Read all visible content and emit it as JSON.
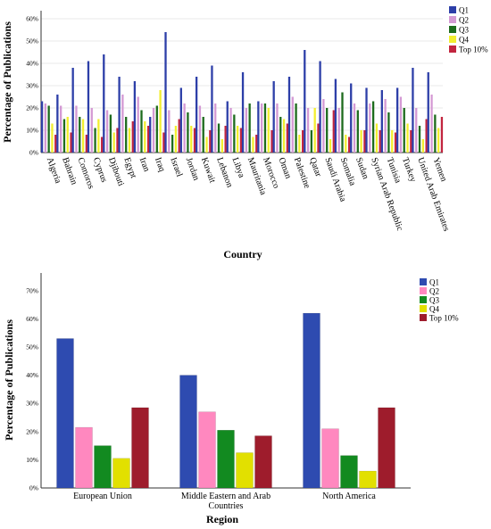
{
  "chart_data": [
    {
      "type": "bar",
      "xlabel": "Country",
      "ylabel": "Percentage of Publications",
      "ylim": [
        0,
        62
      ],
      "yticks": [
        "0%",
        "10%",
        "20%",
        "30%",
        "40%",
        "50%",
        "60%"
      ],
      "legend_position": "top-right",
      "categories": [
        "Algeria",
        "Bahrain",
        "Comoros",
        "Cyprus",
        "Djibouti",
        "Egypt",
        "Iran",
        "Iraq",
        "Israel",
        "Jordan",
        "Kuwait",
        "Lebanon",
        "Libya",
        "Mauritania",
        "Morocco",
        "Oman",
        "Palestine",
        "Qatar",
        "Saudi Arabia",
        "Somalia",
        "Sudan",
        "Syrian Arab Republic",
        "Tunisia",
        "Turkey",
        "United Arab Emirates",
        "Yemen"
      ],
      "series": [
        {
          "name": "Q1",
          "color": "#2d3fa8",
          "values": [
            23,
            26,
            38,
            41,
            44,
            34,
            32,
            16,
            54,
            29,
            34,
            39,
            23,
            36,
            23,
            32,
            34,
            46,
            41,
            33,
            31,
            29,
            28,
            29,
            38,
            36
          ]
        },
        {
          "name": "Q2",
          "color": "#d49ad4",
          "values": [
            22,
            21,
            21,
            20,
            19,
            26,
            25,
            20,
            19,
            22,
            21,
            22,
            20,
            20,
            22,
            22,
            25,
            20,
            24,
            20,
            22,
            22,
            24,
            25,
            20,
            26
          ]
        },
        {
          "name": "Q3",
          "color": "#1d6b1d",
          "values": [
            21,
            15,
            16,
            11,
            17,
            16,
            19,
            21,
            8,
            18,
            16,
            13,
            17,
            22,
            22,
            16,
            22,
            10,
            20,
            27,
            19,
            23,
            18,
            20,
            12,
            17
          ]
        },
        {
          "name": "Q4",
          "color": "#f2ee30",
          "values": [
            13,
            16,
            15,
            15,
            9,
            11,
            14,
            28,
            12,
            12,
            7,
            6,
            12,
            7,
            20,
            15,
            8,
            20,
            6,
            8,
            10,
            13,
            10,
            13,
            6,
            11
          ]
        },
        {
          "name": "Top 10%",
          "color": "#c2253f",
          "values": [
            8,
            9,
            8,
            7,
            11,
            14,
            12,
            9,
            15,
            11,
            10,
            12,
            11,
            8,
            10,
            13,
            10,
            13,
            19,
            7,
            10,
            10,
            9,
            10,
            15,
            16
          ]
        }
      ]
    },
    {
      "type": "bar",
      "xlabel": "Region",
      "ylabel": "Percentage of Publications",
      "ylim": [
        0,
        75
      ],
      "yticks": [
        "0%",
        "10%",
        "20%",
        "30%",
        "40%",
        "50%",
        "60%",
        "70%"
      ],
      "legend_position": "top-right",
      "categories": [
        "European Union",
        "Middle Eastern and Arab Countries",
        "North America"
      ],
      "category_lines": [
        [
          "European Union"
        ],
        [
          "Middle Eastern and Arab",
          "Countries"
        ],
        [
          "North America"
        ]
      ],
      "series": [
        {
          "name": "Q1",
          "color": "#2e4bb0",
          "values": [
            53,
            40,
            62
          ]
        },
        {
          "name": "Q2",
          "color": "#ff88bf",
          "values": [
            21.5,
            27,
            21
          ]
        },
        {
          "name": "Q3",
          "color": "#128a20",
          "values": [
            15,
            20.5,
            11.5
          ]
        },
        {
          "name": "Q4",
          "color": "#e2e000",
          "values": [
            10.5,
            12.5,
            6
          ]
        },
        {
          "name": "Top 10%",
          "color": "#9e1c2c",
          "values": [
            28.5,
            18.5,
            28.5
          ]
        }
      ]
    }
  ]
}
